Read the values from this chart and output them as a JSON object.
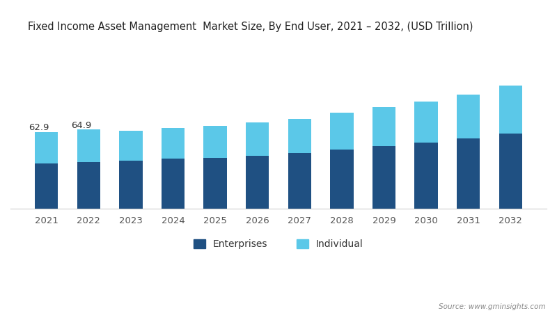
{
  "title": "Fixed Income Asset Management  Market Size, By End User, 2021 – 2032, (USD Trillion)",
  "years": [
    2021,
    2022,
    2023,
    2024,
    2025,
    2026,
    2027,
    2028,
    2029,
    2030,
    2031,
    2032
  ],
  "enterprises": [
    37.0,
    38.5,
    39.5,
    41.0,
    42.0,
    43.5,
    45.5,
    48.5,
    51.5,
    54.5,
    58.0,
    62.0
  ],
  "individual": [
    25.9,
    26.4,
    24.5,
    25.5,
    26.0,
    27.5,
    28.5,
    30.5,
    32.0,
    33.5,
    36.0,
    39.0
  ],
  "annotations": [
    {
      "year_idx": 0,
      "text": "62.9"
    },
    {
      "year_idx": 1,
      "text": "64.9"
    }
  ],
  "enterprise_color": "#1f5082",
  "individual_color": "#5bc8e8",
  "legend_enterprises": "Enterprises",
  "legend_individual": "Individual",
  "source_text": "Source: www.gminsights.com",
  "background_color": "#ffffff",
  "ylim": [
    0,
    145
  ],
  "bar_width": 0.55
}
